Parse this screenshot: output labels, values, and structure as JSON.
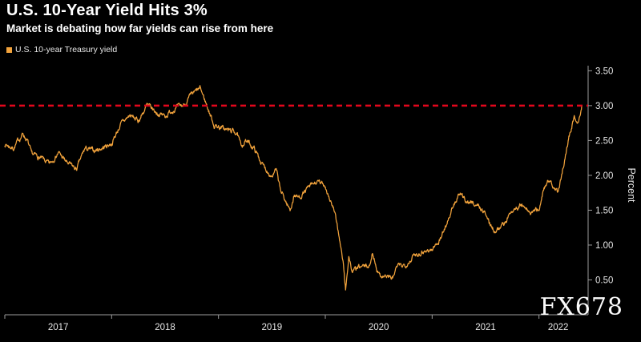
{
  "title": "U.S. 10-Year Yield Hits 3%",
  "subtitle": "Market is debating how far yields can rise from here",
  "legend": {
    "label": "U.S. 10-year Treasury yield"
  },
  "watermark": "FX678",
  "colors": {
    "background": "#000000",
    "line": "#F2A33C",
    "threshold": "#E2071C",
    "axis": "#9b9b9b",
    "tick_text": "#e6e6e6",
    "title_text": "#ffffff"
  },
  "chart_data": {
    "type": "line",
    "title": "U.S. 10-Year Yield Hits 3%",
    "subtitle": "Market is debating how far yields can rise from here",
    "xlabel": "",
    "ylabel": "Percent",
    "ylim": [
      0,
      3.55
    ],
    "yticks": [
      0.5,
      1.0,
      1.5,
      2.0,
      2.5,
      3.0,
      3.5
    ],
    "xlim": [
      2017.0,
      2022.46
    ],
    "xticks": [
      2017,
      2018,
      2019,
      2020,
      2021,
      2022
    ],
    "grid": false,
    "legend_position": "top-left",
    "threshold": 3.0,
    "series": [
      {
        "name": "U.S. 10-year Treasury yield",
        "x": [
          2017.0,
          2017.08,
          2017.17,
          2017.21,
          2017.25,
          2017.33,
          2017.42,
          2017.5,
          2017.58,
          2017.67,
          2017.75,
          2017.83,
          2017.92,
          2018.0,
          2018.08,
          2018.17,
          2018.25,
          2018.33,
          2018.42,
          2018.5,
          2018.58,
          2018.67,
          2018.75,
          2018.83,
          2018.88,
          2018.96,
          2019.0,
          2019.08,
          2019.17,
          2019.21,
          2019.25,
          2019.33,
          2019.42,
          2019.5,
          2019.54,
          2019.58,
          2019.67,
          2019.71,
          2019.75,
          2019.83,
          2019.92,
          2020.0,
          2020.08,
          2020.13,
          2020.17,
          2020.19,
          2020.22,
          2020.25,
          2020.33,
          2020.42,
          2020.44,
          2020.5,
          2020.58,
          2020.63,
          2020.67,
          2020.75,
          2020.83,
          2020.92,
          2021.0,
          2021.08,
          2021.17,
          2021.25,
          2021.33,
          2021.42,
          2021.5,
          2021.54,
          2021.58,
          2021.67,
          2021.75,
          2021.83,
          2021.92,
          2022.0,
          2022.04,
          2022.08,
          2022.13,
          2022.18,
          2022.25,
          2022.29,
          2022.33,
          2022.36,
          2022.4
        ],
        "y": [
          2.45,
          2.39,
          2.6,
          2.5,
          2.3,
          2.25,
          2.15,
          2.33,
          2.18,
          2.08,
          2.38,
          2.35,
          2.4,
          2.46,
          2.72,
          2.86,
          2.78,
          3.0,
          2.9,
          2.85,
          2.95,
          3.0,
          3.15,
          3.24,
          3.05,
          2.72,
          2.7,
          2.65,
          2.62,
          2.41,
          2.5,
          2.4,
          2.13,
          2.0,
          2.07,
          1.78,
          1.5,
          1.72,
          1.68,
          1.8,
          1.9,
          1.85,
          1.5,
          1.13,
          0.7,
          0.35,
          0.85,
          0.62,
          0.68,
          0.7,
          0.9,
          0.58,
          0.55,
          0.52,
          0.68,
          0.72,
          0.85,
          0.92,
          0.93,
          1.1,
          1.45,
          1.72,
          1.63,
          1.58,
          1.45,
          1.3,
          1.22,
          1.3,
          1.5,
          1.58,
          1.45,
          1.52,
          1.78,
          1.93,
          1.83,
          1.75,
          2.32,
          2.6,
          2.85,
          2.75,
          3.0
        ]
      }
    ]
  }
}
